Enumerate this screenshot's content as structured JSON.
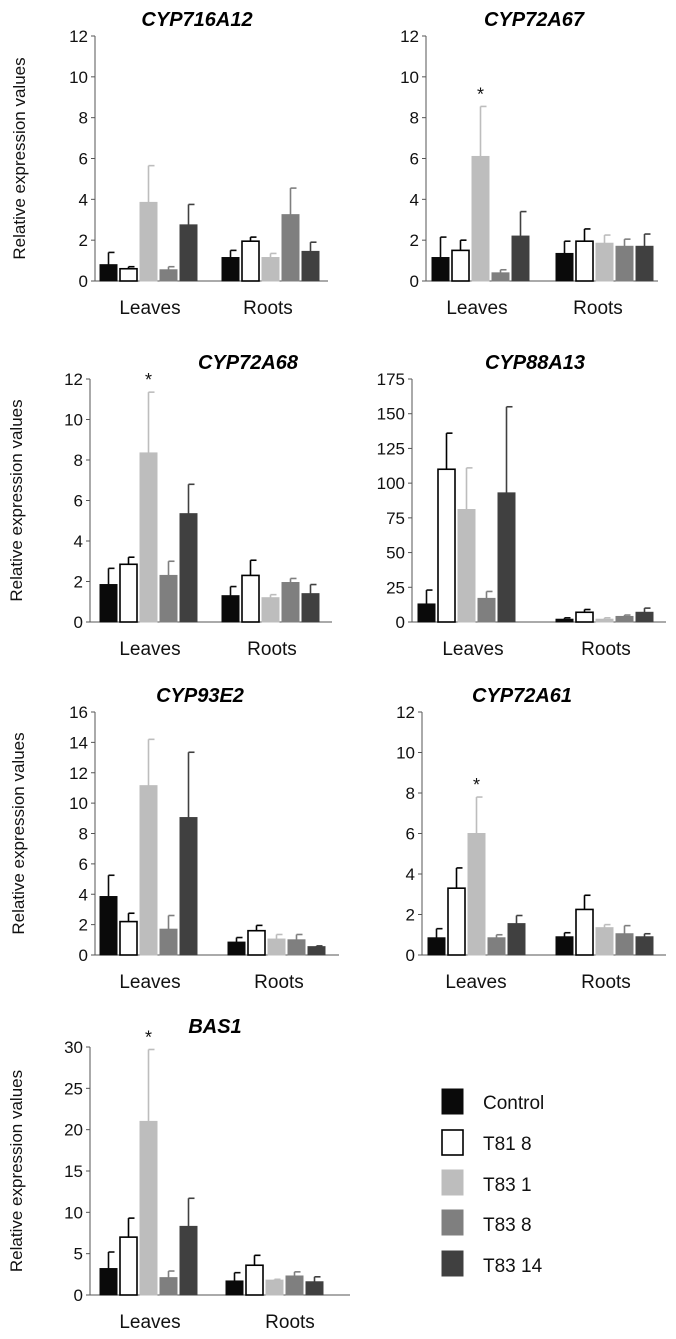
{
  "figure": {
    "ylabel": "Relative expression values",
    "legend_placement": "bottom-right"
  },
  "legend": [
    {
      "name": "Control",
      "color": "#0a0a0a",
      "stroke": "#0a0a0a"
    },
    {
      "name": "T81 8",
      "color": "#ffffff",
      "stroke": "#000000"
    },
    {
      "name": "T83 1",
      "color": "#bdbdbd",
      "stroke": "#bdbdbd"
    },
    {
      "name": "T83 8",
      "color": "#7f7f7f",
      "stroke": "#7f7f7f"
    },
    {
      "name": "T83 14",
      "color": "#404040",
      "stroke": "#404040"
    }
  ],
  "chart_data": [
    {
      "type": "bar",
      "title": "CYP716A12",
      "ylabel": "Relative expression values",
      "categories": [
        "Leaves",
        "Roots"
      ],
      "ylim": [
        0,
        12
      ],
      "yticks": [
        0,
        2,
        4,
        6,
        8,
        10,
        12
      ],
      "series": [
        {
          "name": "Control",
          "values": [
            0.8,
            1.15
          ],
          "errors": [
            0.6,
            0.35
          ]
        },
        {
          "name": "T81 8",
          "values": [
            0.6,
            1.95
          ],
          "errors": [
            0.1,
            0.2
          ]
        },
        {
          "name": "T83 1",
          "values": [
            3.85,
            1.15
          ],
          "errors": [
            1.8,
            0.2
          ]
        },
        {
          "name": "T83 8",
          "values": [
            0.55,
            3.25
          ],
          "errors": [
            0.15,
            1.3
          ]
        },
        {
          "name": "T83 14",
          "values": [
            2.75,
            1.45
          ],
          "errors": [
            1.0,
            0.45
          ]
        }
      ],
      "annotations": []
    },
    {
      "type": "bar",
      "title": "CYP72A67",
      "ylabel": "",
      "categories": [
        "Leaves",
        "Roots"
      ],
      "ylim": [
        0,
        12
      ],
      "yticks": [
        0,
        2,
        4,
        6,
        8,
        10,
        12
      ],
      "series": [
        {
          "name": "Control",
          "values": [
            1.15,
            1.35
          ],
          "errors": [
            1.0,
            0.6
          ]
        },
        {
          "name": "T81 8",
          "values": [
            1.5,
            1.95
          ],
          "errors": [
            0.5,
            0.6
          ]
        },
        {
          "name": "T83 1",
          "values": [
            6.1,
            1.85
          ],
          "errors": [
            2.45,
            0.4
          ]
        },
        {
          "name": "T83 8",
          "values": [
            0.4,
            1.7
          ],
          "errors": [
            0.15,
            0.35
          ]
        },
        {
          "name": "T83 14",
          "values": [
            2.2,
            1.7
          ],
          "errors": [
            1.2,
            0.6
          ]
        }
      ],
      "annotations": [
        {
          "text": "*",
          "category": 0,
          "series": 2
        }
      ]
    },
    {
      "type": "bar",
      "title": "CYP72A68",
      "ylabel": "Relative expression values",
      "categories": [
        "Leaves",
        "Roots"
      ],
      "ylim": [
        0,
        12
      ],
      "yticks": [
        0,
        2,
        4,
        6,
        8,
        10,
        12
      ],
      "series": [
        {
          "name": "Control",
          "values": [
            1.85,
            1.3
          ],
          "errors": [
            0.8,
            0.45
          ]
        },
        {
          "name": "T81 8",
          "values": [
            2.85,
            2.3
          ],
          "errors": [
            0.35,
            0.75
          ]
        },
        {
          "name": "T83 1",
          "values": [
            8.35,
            1.2
          ],
          "errors": [
            3.0,
            0.15
          ]
        },
        {
          "name": "T83 8",
          "values": [
            2.3,
            1.95
          ],
          "errors": [
            0.7,
            0.2
          ]
        },
        {
          "name": "T83 14",
          "values": [
            5.35,
            1.4
          ],
          "errors": [
            1.45,
            0.45
          ]
        }
      ],
      "annotations": [
        {
          "text": "*",
          "category": 0,
          "series": 2
        }
      ]
    },
    {
      "type": "bar",
      "title": "CYP88A13",
      "ylabel": "",
      "categories": [
        "Leaves",
        "Roots"
      ],
      "ylim": [
        0,
        175
      ],
      "yticks": [
        0,
        25,
        50,
        75,
        100,
        125,
        150,
        175
      ],
      "series": [
        {
          "name": "Control",
          "values": [
            13,
            2
          ],
          "errors": [
            10,
            1
          ]
        },
        {
          "name": "T81 8",
          "values": [
            110,
            7
          ],
          "errors": [
            26,
            2
          ]
        },
        {
          "name": "T83 1",
          "values": [
            81,
            2
          ],
          "errors": [
            30,
            1
          ]
        },
        {
          "name": "T83 8",
          "values": [
            17,
            4
          ],
          "errors": [
            5,
            1
          ]
        },
        {
          "name": "T83 14",
          "values": [
            93,
            7
          ],
          "errors": [
            62,
            3
          ]
        }
      ],
      "annotations": []
    },
    {
      "type": "bar",
      "title": "CYP93E2",
      "ylabel": "Relative expression values",
      "categories": [
        "Leaves",
        "Roots"
      ],
      "ylim": [
        0,
        16
      ],
      "yticks": [
        0,
        2,
        4,
        6,
        8,
        10,
        12,
        14,
        16
      ],
      "series": [
        {
          "name": "Control",
          "values": [
            3.85,
            0.85
          ],
          "errors": [
            1.4,
            0.3
          ]
        },
        {
          "name": "T81 8",
          "values": [
            2.2,
            1.6
          ],
          "errors": [
            0.55,
            0.35
          ]
        },
        {
          "name": "T83 1",
          "values": [
            11.15,
            1.05
          ],
          "errors": [
            3.05,
            0.3
          ]
        },
        {
          "name": "T83 8",
          "values": [
            1.7,
            1.0
          ],
          "errors": [
            0.9,
            0.35
          ]
        },
        {
          "name": "T83 14",
          "values": [
            9.05,
            0.55
          ],
          "errors": [
            4.3,
            0.05
          ]
        }
      ],
      "annotations": []
    },
    {
      "type": "bar",
      "title": "CYP72A61",
      "ylabel": "",
      "categories": [
        "Leaves",
        "Roots"
      ],
      "ylim": [
        0,
        12
      ],
      "yticks": [
        0,
        2,
        4,
        6,
        8,
        10,
        12
      ],
      "series": [
        {
          "name": "Control",
          "values": [
            0.85,
            0.9
          ],
          "errors": [
            0.45,
            0.2
          ]
        },
        {
          "name": "T81 8",
          "values": [
            3.3,
            2.25
          ],
          "errors": [
            1.0,
            0.7
          ]
        },
        {
          "name": "T83 1",
          "values": [
            6.0,
            1.35
          ],
          "errors": [
            1.8,
            0.15
          ]
        },
        {
          "name": "T83 8",
          "values": [
            0.85,
            1.05
          ],
          "errors": [
            0.15,
            0.4
          ]
        },
        {
          "name": "T83 14",
          "values": [
            1.55,
            0.9
          ],
          "errors": [
            0.4,
            0.15
          ]
        }
      ],
      "annotations": [
        {
          "text": "*",
          "category": 0,
          "series": 2
        }
      ]
    },
    {
      "type": "bar",
      "title": "BAS1",
      "ylabel": "Relative expression values",
      "categories": [
        "Leaves",
        "Roots"
      ],
      "ylim": [
        0,
        30
      ],
      "yticks": [
        0,
        5,
        10,
        15,
        20,
        25,
        30
      ],
      "series": [
        {
          "name": "Control",
          "values": [
            3.2,
            1.7
          ],
          "errors": [
            2.0,
            1.0
          ]
        },
        {
          "name": "T81 8",
          "values": [
            7.0,
            3.6
          ],
          "errors": [
            2.3,
            1.2
          ]
        },
        {
          "name": "T83 1",
          "values": [
            21.0,
            1.8
          ],
          "errors": [
            8.7,
            0.1
          ]
        },
        {
          "name": "T83 8",
          "values": [
            2.1,
            2.3
          ],
          "errors": [
            0.8,
            0.5
          ]
        },
        {
          "name": "T83 14",
          "values": [
            8.3,
            1.6
          ],
          "errors": [
            3.4,
            0.6
          ]
        }
      ],
      "annotations": [
        {
          "text": "*",
          "category": 0,
          "series": 2
        }
      ]
    }
  ]
}
